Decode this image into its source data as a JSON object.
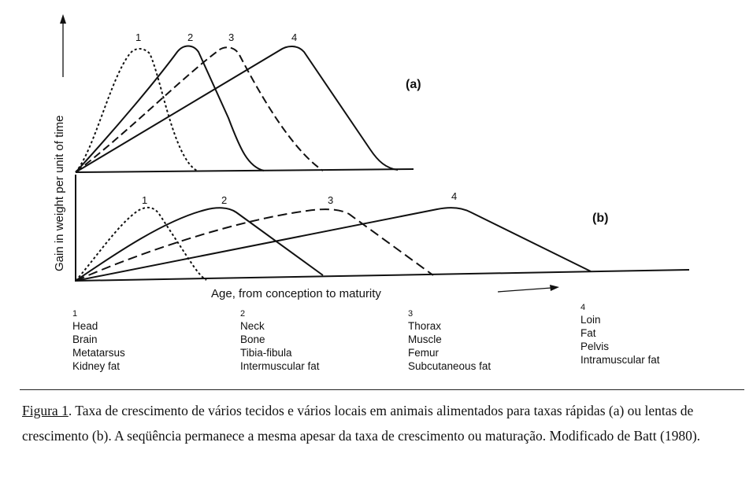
{
  "figure": {
    "y_axis_label": "Gain in weight per unit of time",
    "x_axis_label": "Age, from conception to maturity",
    "panel_a_label": "(a)",
    "panel_b_label": "(b)",
    "curve_labels_a": [
      "1",
      "2",
      "3",
      "4"
    ],
    "curve_labels_b": [
      "1",
      "2",
      "3",
      "4"
    ],
    "line_color": "#111111"
  },
  "legend": [
    {
      "number": "1",
      "items": [
        "Head",
        "Brain",
        "Metatarsus",
        "Kidney fat"
      ]
    },
    {
      "number": "2",
      "items": [
        "Neck",
        "Bone",
        "Tibia-fibula",
        "Intermuscular fat"
      ]
    },
    {
      "number": "3",
      "items": [
        "Thorax",
        "Muscle",
        "Femur",
        "Subcutaneous fat"
      ]
    },
    {
      "number": "4",
      "items": [
        "Loin",
        "Fat",
        "Pelvis",
        "Intramuscular fat"
      ]
    }
  ],
  "caption": {
    "label": "Figura 1",
    "text": ". Taxa de crescimento de vários tecidos e vários locais em animais alimentados para taxas rápidas (a) ou lentas de crescimento (b). A seqüência permanece a mesma apesar da taxa de crescimento ou maturação. Modificado de Batt (1980)."
  }
}
